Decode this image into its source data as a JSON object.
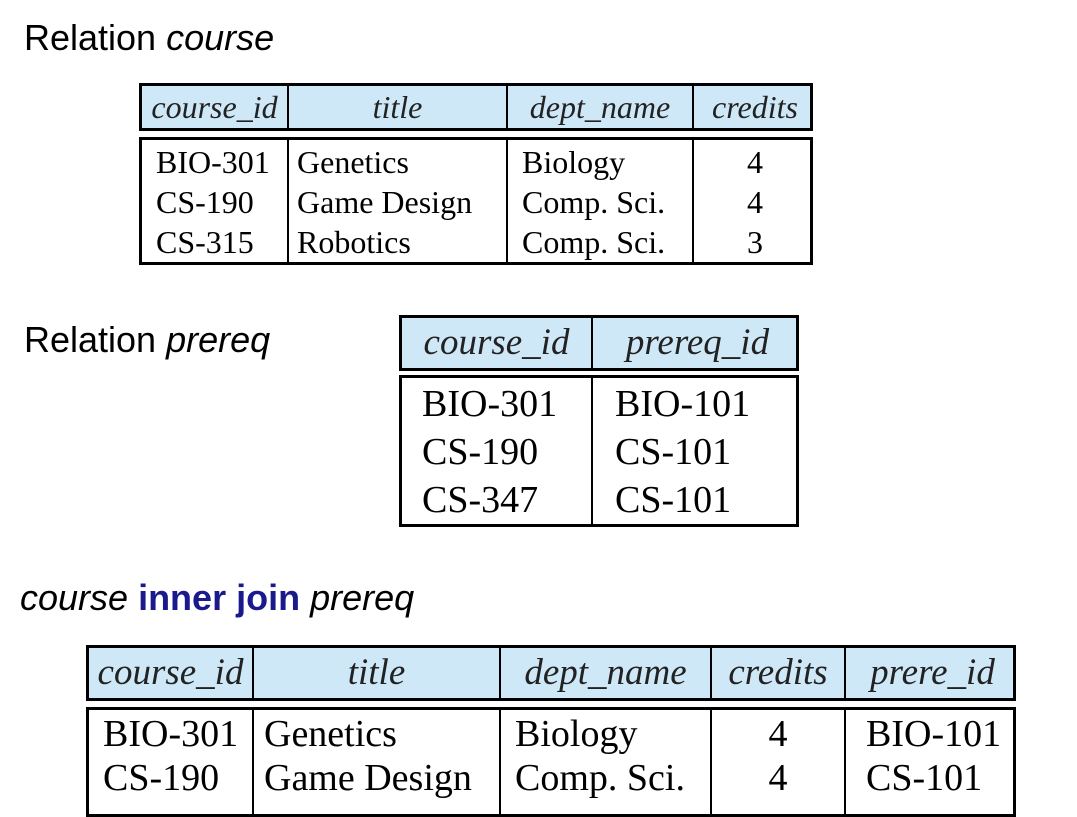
{
  "headings": {
    "course": {
      "prefix": "Relation ",
      "name": "course"
    },
    "prereq": {
      "prefix": "Relation ",
      "name": "prereq"
    },
    "join": {
      "left": "course",
      "op": " inner join ",
      "right": "prereq"
    }
  },
  "course_table": {
    "headers": [
      "course_id",
      "title",
      "dept_name",
      "credits"
    ],
    "rows": [
      [
        "BIO-301",
        "Genetics",
        "Biology",
        "4"
      ],
      [
        "CS-190",
        "Game Design",
        "Comp. Sci.",
        "4"
      ],
      [
        "CS-315",
        "Robotics",
        "Comp. Sci.",
        "3"
      ]
    ]
  },
  "prereq_table": {
    "headers": [
      "course_id",
      "prereq_id"
    ],
    "rows": [
      [
        "BIO-301",
        "BIO-101"
      ],
      [
        "CS-190",
        "CS-101"
      ],
      [
        "CS-347",
        "CS-101"
      ]
    ]
  },
  "join_table": {
    "headers": [
      "course_id",
      "title",
      "dept_name",
      "credits",
      "prere_id"
    ],
    "rows": [
      [
        "BIO-301",
        "Genetics",
        "Biology",
        "4",
        "BIO-101"
      ],
      [
        "CS-190",
        "Game Design",
        "Comp. Sci.",
        "4",
        "CS-101"
      ]
    ]
  }
}
